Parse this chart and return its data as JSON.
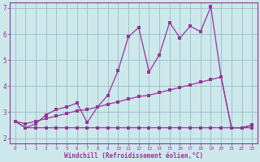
{
  "xlabel": "Windchill (Refroidissement éolien,°C)",
  "bg_color": "#cce8ea",
  "line_color": "#993399",
  "grid_color": "#99bbcc",
  "xlim": [
    -0.5,
    23.5
  ],
  "ylim": [
    1.8,
    7.2
  ],
  "xticks": [
    0,
    1,
    2,
    3,
    4,
    5,
    6,
    7,
    8,
    9,
    10,
    11,
    12,
    13,
    14,
    15,
    16,
    17,
    18,
    19,
    20,
    21,
    22,
    23
  ],
  "yticks": [
    2,
    3,
    4,
    5,
    6,
    7
  ],
  "series_flat_x": [
    0,
    1,
    2,
    3,
    4,
    5,
    6,
    7,
    8,
    9,
    10,
    11,
    12,
    13,
    14,
    15,
    16,
    17,
    18,
    19,
    20,
    21,
    22,
    23
  ],
  "series_flat_y": [
    2.65,
    2.4,
    2.4,
    2.4,
    2.4,
    2.4,
    2.4,
    2.4,
    2.4,
    2.4,
    2.4,
    2.4,
    2.4,
    2.4,
    2.4,
    2.4,
    2.4,
    2.4,
    2.4,
    2.4,
    2.4,
    2.4,
    2.4,
    2.4
  ],
  "series_main_x": [
    0,
    1,
    2,
    3,
    4,
    5,
    6,
    7,
    8,
    9,
    10,
    11,
    12,
    13,
    14,
    15,
    16,
    17,
    18,
    19,
    20,
    21,
    22,
    23
  ],
  "series_main_y": [
    2.65,
    2.4,
    2.55,
    2.9,
    3.1,
    3.2,
    3.35,
    2.6,
    3.2,
    3.65,
    4.6,
    5.9,
    6.25,
    4.55,
    5.2,
    6.45,
    5.85,
    6.3,
    6.1,
    7.05,
    4.35,
    2.4,
    2.4,
    2.5
  ],
  "series_diag_x": [
    0,
    1,
    2,
    3,
    4,
    5,
    6,
    7,
    8,
    9,
    10,
    11,
    12,
    13,
    14,
    15,
    16,
    17,
    18,
    19,
    20,
    21,
    22,
    23
  ],
  "series_diag_y": [
    2.65,
    2.55,
    2.65,
    2.75,
    2.85,
    2.95,
    3.05,
    3.1,
    3.2,
    3.3,
    3.4,
    3.5,
    3.6,
    3.65,
    3.75,
    3.85,
    3.95,
    4.05,
    4.15,
    4.25,
    4.35,
    2.4,
    2.4,
    2.5
  ],
  "marker_size": 2.5,
  "lw": 0.9
}
